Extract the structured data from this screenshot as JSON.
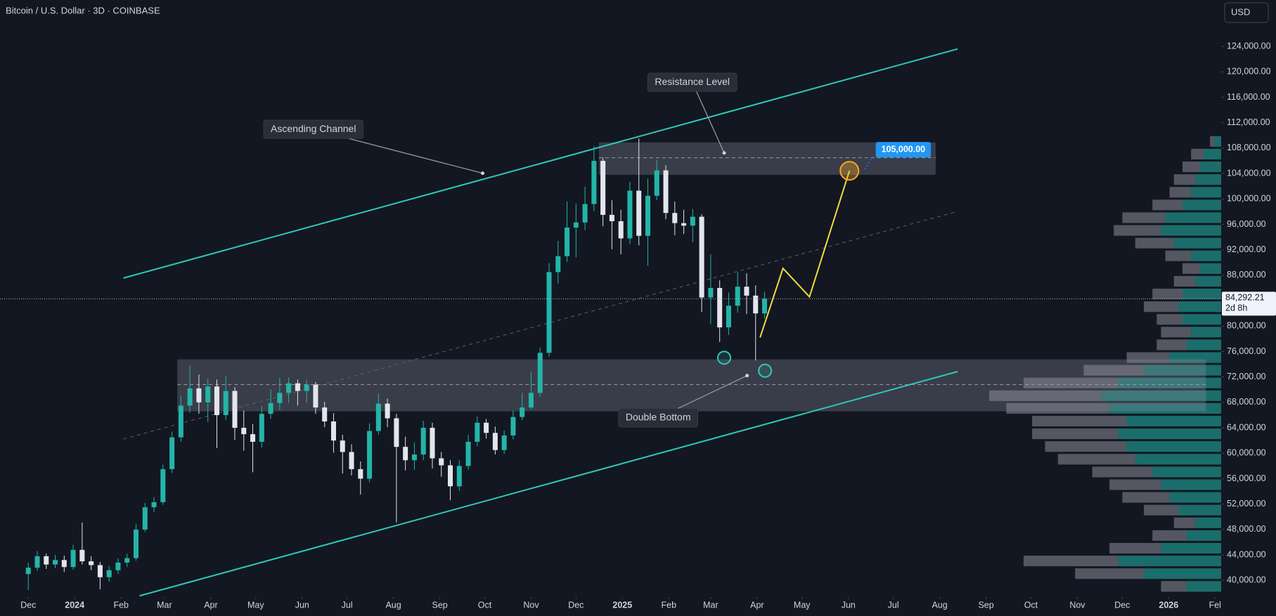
{
  "chart_data": {
    "type": "candlestick",
    "title": "Bitcoin / U.S. Dollar · 3D · COINBASE",
    "currency": "USD",
    "up_color": "#22b5a8",
    "down_color": "#e3e5ec",
    "x": [
      0,
      2,
      4,
      6,
      8,
      10,
      12,
      14,
      16,
      18,
      20,
      22,
      24,
      26,
      28,
      30,
      32,
      34,
      36,
      38,
      40,
      42,
      44,
      46,
      48,
      50,
      52,
      54,
      56,
      58,
      60,
      62,
      64,
      66,
      68,
      70,
      72,
      74,
      76,
      78,
      80,
      82,
      84,
      86,
      88,
      90,
      92,
      94,
      96,
      98,
      100,
      102,
      104,
      106,
      108,
      110,
      112,
      114,
      116,
      118,
      120,
      122,
      124,
      126,
      128,
      130,
      132,
      134,
      136,
      138,
      140,
      142,
      144,
      146,
      148,
      150,
      152,
      154,
      156,
      158,
      160,
      162,
      164
    ],
    "open": [
      41000,
      42000,
      43800,
      42500,
      43200,
      42100,
      44800,
      43000,
      42400,
      40500,
      41600,
      42800,
      43500,
      48000,
      51500,
      52300,
      57500,
      62500,
      67500,
      70200,
      68000,
      70500,
      66000,
      69800,
      64000,
      63000,
      61800,
      66200,
      67900,
      69500,
      71000,
      69800,
      70800,
      67200,
      65000,
      62000,
      60200,
      57500,
      56000,
      63500,
      67800,
      65500,
      61000,
      58900,
      59800,
      64000,
      59200,
      58100,
      54800,
      58000,
      61800,
      64800,
      63200,
      60500,
      62800,
      65700,
      67200,
      69500,
      75800,
      88500,
      91000,
      95500,
      96300,
      99200,
      106000,
      97500,
      96500,
      93800,
      101300,
      94200,
      100500,
      104500,
      97800,
      96200,
      95800,
      97200,
      84500,
      86000,
      79800,
      83200,
      86200,
      84800,
      82000
    ],
    "high": [
      42800,
      44600,
      44200,
      44000,
      43900,
      45600,
      49100,
      43800,
      42900,
      42300,
      43500,
      44200,
      48900,
      52200,
      53100,
      58200,
      63400,
      69100,
      73800,
      72400,
      71800,
      71600,
      72100,
      70400,
      66700,
      64600,
      67400,
      70100,
      71900,
      71900,
      71600,
      71500,
      71200,
      68100,
      66300,
      62900,
      61400,
      58700,
      64700,
      69400,
      68600,
      66200,
      62600,
      61700,
      65100,
      64800,
      60200,
      58900,
      58900,
      62900,
      65800,
      65400,
      64200,
      63600,
      66700,
      69500,
      72800,
      76600,
      89900,
      93400,
      99600,
      99300,
      101900,
      108300,
      106500,
      99800,
      98300,
      102700,
      109500,
      103200,
      106100,
      105300,
      99600,
      98300,
      98400,
      97600,
      91300,
      87200,
      85300,
      88500,
      88300,
      86400,
      85400
    ],
    "low": [
      38500,
      41500,
      41800,
      41900,
      41300,
      41700,
      42500,
      41600,
      38600,
      39800,
      41000,
      42100,
      43100,
      47600,
      50700,
      51900,
      56900,
      61800,
      66400,
      66200,
      64900,
      60800,
      65200,
      62100,
      60400,
      57000,
      60900,
      65400,
      66800,
      67900,
      67500,
      67900,
      66200,
      64100,
      60100,
      56800,
      56500,
      53500,
      55400,
      62900,
      64100,
      49100,
      57300,
      57400,
      58900,
      57600,
      56300,
      52600,
      54100,
      57400,
      61100,
      62300,
      59800,
      59900,
      62200,
      65200,
      66900,
      68900,
      75200,
      86700,
      90100,
      90800,
      95100,
      98100,
      95700,
      92100,
      91300,
      92900,
      92700,
      89500,
      99800,
      96800,
      94300,
      94500,
      93200,
      82200,
      80300,
      77500,
      78600,
      82100,
      81900,
      74600,
      81200
    ],
    "close": [
      42000,
      43800,
      42500,
      43200,
      42100,
      44800,
      43000,
      42400,
      40500,
      41600,
      42800,
      43500,
      48000,
      51500,
      52300,
      57500,
      62500,
      67500,
      70200,
      68000,
      70500,
      66000,
      69800,
      64000,
      63000,
      61800,
      66200,
      67900,
      69500,
      71000,
      69800,
      70800,
      67200,
      65000,
      62000,
      60200,
      57500,
      56000,
      63500,
      67800,
      65500,
      61000,
      58900,
      59800,
      64000,
      59200,
      58100,
      54800,
      58000,
      61800,
      64800,
      63200,
      60500,
      62800,
      65700,
      67200,
      69500,
      75800,
      88500,
      91000,
      95500,
      96300,
      99200,
      106000,
      97500,
      96500,
      93800,
      101300,
      94200,
      100500,
      104500,
      97800,
      96200,
      95800,
      97200,
      84500,
      86000,
      79800,
      83200,
      86200,
      84800,
      82000,
      84292.21
    ],
    "xlim": [
      -6.3,
      265.7
    ],
    "xticks": [
      {
        "value": 0,
        "label": "Dec"
      },
      {
        "value": 10.33,
        "label": "2024"
      },
      {
        "value": 20.67,
        "label": "Feb"
      },
      {
        "value": 30.33,
        "label": "Mar"
      },
      {
        "value": 40.67,
        "label": "Apr"
      },
      {
        "value": 50.67,
        "label": "May"
      },
      {
        "value": 61,
        "label": "Jun"
      },
      {
        "value": 71,
        "label": "Jul"
      },
      {
        "value": 81.33,
        "label": "Aug"
      },
      {
        "value": 91.67,
        "label": "Sep"
      },
      {
        "value": 101.67,
        "label": "Oct"
      },
      {
        "value": 112,
        "label": "Nov"
      },
      {
        "value": 122,
        "label": "Dec"
      },
      {
        "value": 132.33,
        "label": "2025"
      },
      {
        "value": 142.67,
        "label": "Feb"
      },
      {
        "value": 152,
        "label": "Mar"
      },
      {
        "value": 162.33,
        "label": "Apr"
      },
      {
        "value": 172.33,
        "label": "May"
      },
      {
        "value": 182.67,
        "label": "Jun"
      },
      {
        "value": 192.67,
        "label": "Jul"
      },
      {
        "value": 203,
        "label": "Aug"
      },
      {
        "value": 213.33,
        "label": "Sep"
      },
      {
        "value": 223.33,
        "label": "Oct"
      },
      {
        "value": 233.67,
        "label": "Nov"
      },
      {
        "value": 243.67,
        "label": "Dec"
      },
      {
        "value": 254,
        "label": "2026"
      },
      {
        "value": 264.33,
        "label": "Fel"
      }
    ],
    "ylim": [
      37600,
      131300
    ],
    "yticks": [
      {
        "value": 40000,
        "label": "40,000.00"
      },
      {
        "value": 44000,
        "label": "44,000.00"
      },
      {
        "value": 48000,
        "label": "48,000.00"
      },
      {
        "value": 52000,
        "label": "52,000.00"
      },
      {
        "value": 56000,
        "label": "56,000.00"
      },
      {
        "value": 60000,
        "label": "60,000.00"
      },
      {
        "value": 64000,
        "label": "64,000.00"
      },
      {
        "value": 68000,
        "label": "68,000.00"
      },
      {
        "value": 72000,
        "label": "72,000.00"
      },
      {
        "value": 76000,
        "label": "76,000.00"
      },
      {
        "value": 80000,
        "label": "80,000.00"
      },
      {
        "value": 88000,
        "label": "88,000.00"
      },
      {
        "value": 92000,
        "label": "92,000.00"
      },
      {
        "value": 96000,
        "label": "96,000.00"
      },
      {
        "value": 100000,
        "label": "100,000.00"
      },
      {
        "value": 104000,
        "label": "104,000.00"
      },
      {
        "value": 108000,
        "label": "108,000.00"
      },
      {
        "value": 112000,
        "label": "112,000.00"
      },
      {
        "value": 116000,
        "label": "116,000.00"
      },
      {
        "value": 120000,
        "label": "120,000.00"
      },
      {
        "value": 124000,
        "label": "124,000.00"
      }
    ],
    "last_price": {
      "value": 84292.21,
      "label": "84,292.21"
    },
    "countdown": "2d 8h",
    "channel_color": "#2ec9bb",
    "channel": {
      "upper": [
        [
          21.2,
          87560
        ],
        [
          207,
          123600
        ]
      ],
      "lower": [
        [
          24.8,
          37570
        ],
        [
          207,
          72850
        ]
      ],
      "middle": [
        [
          21.2,
          62240
        ],
        [
          207,
          98040
        ]
      ]
    },
    "zones": [
      {
        "x": [
          127.1,
          202.1
        ],
        "y": [
          103800,
          108900
        ],
        "mid": 106480
      },
      {
        "x": [
          33.2,
          262.3
        ],
        "y": [
          66590,
          74770
        ],
        "mid": 70810
      }
    ],
    "projection": {
      "color": "#f2dc3a",
      "points": [
        [
          163,
          78220
        ],
        [
          168.1,
          89090
        ],
        [
          174,
          84610
        ],
        [
          182.9,
          104430
        ]
      ]
    },
    "target": {
      "at": [
        182.9,
        104430
      ],
      "value": 105000,
      "label": "105,000.00",
      "label_at": [
        194.9,
        107750
      ]
    },
    "lows": [
      [
        155,
        75020
      ],
      [
        164.1,
        72980
      ]
    ],
    "annotations": [
      {
        "text": "Ascending Channel",
        "at": [
          63.5,
          110950
        ],
        "point": [
          101.2,
          104050
        ]
      },
      {
        "text": "Resistance Level",
        "at": [
          147.9,
          118360
        ],
        "point": [
          155,
          107240
        ]
      },
      {
        "text": "Double Bottom",
        "at": [
          140.3,
          65570
        ],
        "point": [
          160.1,
          72210
        ]
      }
    ],
    "volume_profile": {
      "prices": [
        39000,
        41000,
        43000,
        45000,
        47000,
        49000,
        51000,
        53000,
        55000,
        57000,
        59000,
        61000,
        63000,
        65000,
        67000,
        69000,
        71000,
        73000,
        75000,
        77000,
        79000,
        81000,
        83000,
        85000,
        87000,
        89000,
        91000,
        93000,
        95000,
        97000,
        99000,
        101000,
        103000,
        105000,
        107000,
        109000
      ],
      "up": [
        40,
        90,
        120,
        70,
        40,
        30,
        50,
        60,
        70,
        80,
        100,
        110,
        120,
        110,
        130,
        140,
        120,
        90,
        60,
        40,
        35,
        45,
        50,
        45,
        30,
        25,
        35,
        55,
        70,
        65,
        45,
        35,
        30,
        25,
        20,
        8
      ],
      "down": [
        30,
        80,
        110,
        60,
        40,
        25,
        40,
        55,
        60,
        70,
        90,
        95,
        100,
        110,
        120,
        130,
        110,
        70,
        50,
        35,
        35,
        30,
        40,
        35,
        25,
        20,
        30,
        45,
        55,
        50,
        35,
        25,
        25,
        20,
        15,
        5
      ]
    }
  }
}
